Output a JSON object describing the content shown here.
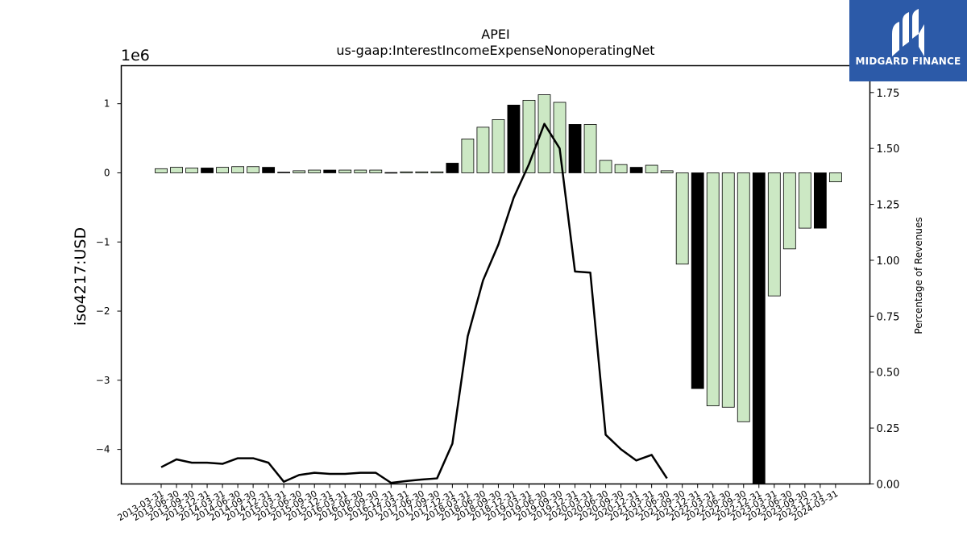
{
  "logo": {
    "text": "MIDGARD FINANCE",
    "icon": "midgard-m-logo-icon"
  },
  "chart_data": {
    "type": "bar",
    "title": "APEI",
    "subtitle": "us-gaap:InterestIncomeExpenseNonoperatingNet",
    "ylabel": "iso4217:USD",
    "y_offset_label": "1e6",
    "y2label": "Percentage of Revenues",
    "ylim": [
      -4500000,
      1550000
    ],
    "y2lim": [
      0,
      1.87
    ],
    "yticks": [
      1000000,
      0,
      -1000000,
      -2000000,
      -3000000,
      -4000000
    ],
    "ytick_labels": [
      "1",
      "0",
      "−1",
      "−2",
      "−3",
      "−4"
    ],
    "y2ticks": [
      0,
      0.25,
      0.5,
      0.75,
      1.0,
      1.25,
      1.5,
      1.75
    ],
    "y2tick_labels": [
      "0.00",
      "0.25",
      "0.50",
      "0.75",
      "1.00",
      "1.25",
      "1.50",
      "1.75"
    ],
    "grid": false,
    "colors": {
      "bar_fill": "#cce8c4",
      "bar_fill_q4": "#000000",
      "bar_edge": "#000000",
      "line": "#000000"
    },
    "categories": [
      "2013-03-31",
      "2013-06-30",
      "2013-09-30",
      "2013-12-31",
      "2014-03-31",
      "2014-06-30",
      "2014-09-30",
      "2014-12-31",
      "2015-03-31",
      "2015-06-30",
      "2015-09-30",
      "2015-12-31",
      "2016-03-31",
      "2016-06-30",
      "2016-09-30",
      "2016-12-31",
      "2017-03-31",
      "2017-06-30",
      "2017-09-30",
      "2017-12-31",
      "2018-03-31",
      "2018-06-30",
      "2018-09-30",
      "2018-12-31",
      "2019-03-31",
      "2019-06-30",
      "2019-09-30",
      "2019-12-31",
      "2020-03-31",
      "2020-06-30",
      "2020-09-30",
      "2020-12-31",
      "2021-03-31",
      "2021-06-30",
      "2021-09-30",
      "2021-12-31",
      "2022-03-31",
      "2022-06-30",
      "2022-09-30",
      "2022-12-31",
      "2023-03-31",
      "2023-06-30",
      "2023-09-30",
      "2023-12-31",
      "2024-03-31"
    ],
    "series": [
      {
        "type": "bar",
        "values": [
          60000,
          80000,
          70000,
          70000,
          80000,
          90000,
          90000,
          80000,
          10000,
          30000,
          40000,
          40000,
          40000,
          40000,
          40000,
          5000,
          15000,
          15000,
          15000,
          140000,
          490000,
          660000,
          770000,
          980000,
          1050000,
          1130000,
          1020000,
          700000,
          700000,
          180000,
          120000,
          80000,
          110000,
          30000,
          -1320000,
          -3120000,
          -3370000,
          -3390000,
          -3600000,
          -4500000,
          -1780000,
          -1100000,
          -800000,
          -800000,
          -130000
        ],
        "highlighted": [
          false,
          false,
          false,
          true,
          false,
          false,
          false,
          true,
          false,
          false,
          false,
          true,
          false,
          false,
          false,
          true,
          false,
          false,
          false,
          true,
          false,
          false,
          false,
          true,
          false,
          false,
          false,
          true,
          false,
          false,
          false,
          true,
          false,
          false,
          false,
          true,
          false,
          false,
          false,
          true,
          false,
          false,
          false,
          true,
          false
        ]
      },
      {
        "type": "line",
        "axis": "right",
        "values": [
          0.075,
          0.11,
          0.095,
          0.095,
          0.09,
          0.115,
          0.115,
          0.095,
          0.01,
          0.04,
          0.05,
          0.045,
          0.045,
          0.05,
          0.05,
          0.005,
          0.013,
          0.02,
          0.025,
          0.18,
          0.66,
          0.91,
          1.07,
          1.28,
          1.43,
          1.61,
          1.5,
          0.95,
          0.945,
          0.22,
          0.155,
          0.105,
          0.13,
          0.025,
          null,
          null,
          null,
          null,
          null,
          null,
          null,
          null,
          null,
          null,
          null
        ]
      }
    ]
  }
}
